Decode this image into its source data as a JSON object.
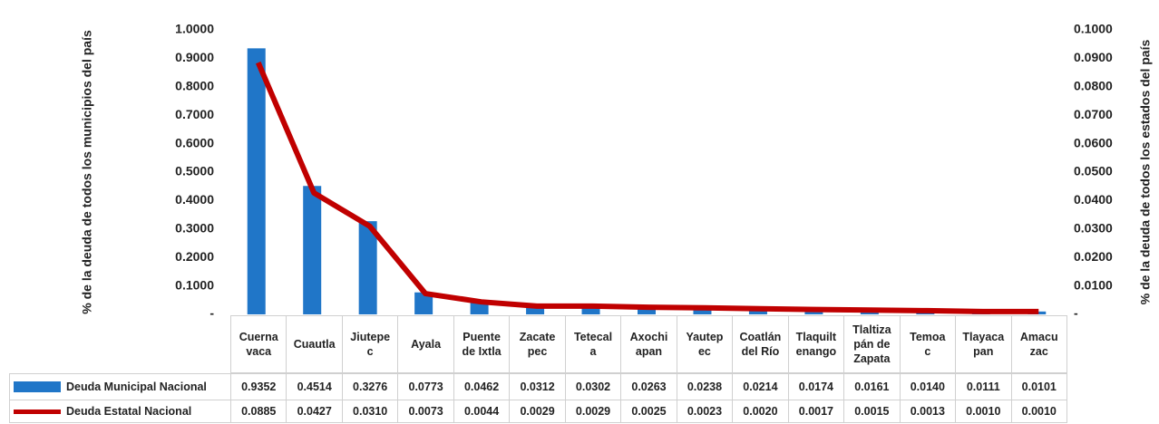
{
  "chart_data": {
    "type": "bar",
    "y_label": "% de la deuda de todos los municipios del país",
    "y2_label": "% de la deuda de todos los estados del país",
    "categories": [
      "Cuerna\nvaca",
      "Cuautla",
      "Jiutepe\nc",
      "Ayala",
      "Puente\nde Ixtla",
      "Zacate\npec",
      "Tetecal\na",
      "Axochi\napan",
      "Yautep\nec",
      "Coatlán\ndel Río",
      "Tlaquilt\nenango",
      "Tlaltiza\npán de\nZapata",
      "Temoa\nc",
      "Tlayaca\npan",
      "Amacu\nzac"
    ],
    "series": [
      {
        "name": "Deuda Municipal Nacional",
        "type": "bar",
        "color": "#2076c8",
        "values": [
          0.9352,
          0.4514,
          0.3276,
          0.0773,
          0.0462,
          0.0312,
          0.0302,
          0.0263,
          0.0238,
          0.0214,
          0.0174,
          0.0161,
          0.014,
          0.0111,
          0.0101
        ],
        "value_labels": [
          "0.9352",
          "0.4514",
          "0.3276",
          "0.0773",
          "0.0462",
          "0.0312",
          "0.0302",
          "0.0263",
          "0.0238",
          "0.0214",
          "0.0174",
          "0.0161",
          "0.0140",
          "0.0111",
          "0.0101"
        ]
      },
      {
        "name": "Deuda Estatal Nacional",
        "type": "line",
        "axis": "y2",
        "color": "#c00000",
        "values": [
          0.0885,
          0.0427,
          0.031,
          0.0073,
          0.0044,
          0.0029,
          0.0029,
          0.0025,
          0.0023,
          0.002,
          0.0017,
          0.0015,
          0.0013,
          0.001,
          0.001
        ],
        "value_labels": [
          "0.0885",
          "0.0427",
          "0.0310",
          "0.0073",
          "0.0044",
          "0.0029",
          "0.0029",
          "0.0025",
          "0.0023",
          "0.0020",
          "0.0017",
          "0.0015",
          "0.0013",
          "0.0010",
          "0.0010"
        ]
      }
    ],
    "ylim": [
      0,
      1
    ],
    "yticks": [
      {
        "value": 0,
        "label": "-"
      },
      {
        "value": 0.1,
        "label": "0.1000"
      },
      {
        "value": 0.2,
        "label": "0.2000"
      },
      {
        "value": 0.3,
        "label": "0.3000"
      },
      {
        "value": 0.4,
        "label": "0.4000"
      },
      {
        "value": 0.5,
        "label": "0.5000"
      },
      {
        "value": 0.6,
        "label": "0.6000"
      },
      {
        "value": 0.7,
        "label": "0.7000"
      },
      {
        "value": 0.8,
        "label": "0.8000"
      },
      {
        "value": 0.9,
        "label": "0.9000"
      },
      {
        "value": 1,
        "label": "1.0000"
      }
    ],
    "y2lim": [
      0,
      0.1
    ],
    "y2ticks": [
      {
        "value": 0,
        "label": "-"
      },
      {
        "value": 0.01,
        "label": "0.0100"
      },
      {
        "value": 0.02,
        "label": "0.0200"
      },
      {
        "value": 0.03,
        "label": "0.0300"
      },
      {
        "value": 0.04,
        "label": "0.0400"
      },
      {
        "value": 0.05,
        "label": "0.0500"
      },
      {
        "value": 0.06,
        "label": "0.0600"
      },
      {
        "value": 0.07,
        "label": "0.0700"
      },
      {
        "value": 0.08,
        "label": "0.0800"
      },
      {
        "value": 0.09,
        "label": "0.0900"
      },
      {
        "value": 0.1,
        "label": "0.1000"
      }
    ]
  }
}
